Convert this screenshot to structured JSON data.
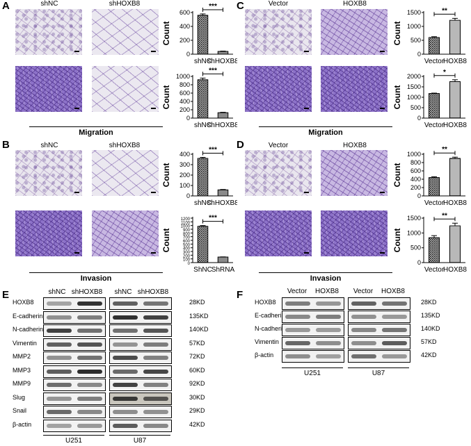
{
  "panels": {
    "A": {
      "letter": "A",
      "left": "shNC",
      "right": "shHOXB8",
      "caption": "Migration"
    },
    "B": {
      "letter": "B",
      "left": "shNC",
      "right": "shHOXB8",
      "caption": "Invasion"
    },
    "C": {
      "letter": "C",
      "left": "Vector",
      "right": "HOXB8",
      "caption": "Migration"
    },
    "D": {
      "letter": "D",
      "left": "Vector",
      "right": "HOXB8",
      "caption": "Invasion"
    }
  },
  "chart_data": [
    {
      "type": "bar",
      "panel": "A",
      "row": 1,
      "categories": [
        "shNC",
        "shHOXB8"
      ],
      "values": [
        560,
        40
      ],
      "errors": [
        20,
        5
      ],
      "ylabel": "Count",
      "ylim": [
        0,
        600
      ],
      "yticks": [
        0,
        200,
        400,
        600
      ],
      "significance": "***"
    },
    {
      "type": "bar",
      "panel": "A",
      "row": 2,
      "categories": [
        "shNC",
        "shHOXB8"
      ],
      "values": [
        920,
        130
      ],
      "errors": [
        40,
        10
      ],
      "ylabel": "Count",
      "ylim": [
        0,
        1000
      ],
      "yticks": [
        0,
        200,
        400,
        600,
        800,
        1000
      ],
      "significance": "***"
    },
    {
      "type": "bar",
      "panel": "B",
      "row": 1,
      "categories": [
        "shNC",
        "shHOXB8"
      ],
      "values": [
        360,
        58
      ],
      "errors": [
        10,
        4
      ],
      "ylabel": "Count",
      "ylim": [
        0,
        400
      ],
      "yticks": [
        0,
        100,
        200,
        300,
        400
      ],
      "significance": "***"
    },
    {
      "type": "bar",
      "panel": "B",
      "row": 2,
      "categories": [
        "ShNC",
        "ShRNA"
      ],
      "values": [
        980,
        150
      ],
      "errors": [
        20,
        5
      ],
      "ylabel": "Count",
      "ylim": [
        0,
        1200
      ],
      "yticks": [
        0,
        100,
        200,
        300,
        400,
        500,
        600,
        700,
        800,
        900,
        1000,
        1100,
        1200
      ],
      "significance": "***"
    },
    {
      "type": "bar",
      "panel": "C",
      "row": 1,
      "categories": [
        "Vector",
        "HOXB8"
      ],
      "values": [
        600,
        1220
      ],
      "errors": [
        30,
        70
      ],
      "ylabel": "Count",
      "ylim": [
        0,
        1500
      ],
      "yticks": [
        0,
        500,
        1000,
        1500
      ],
      "significance": "**"
    },
    {
      "type": "bar",
      "panel": "C",
      "row": 2,
      "categories": [
        "Vector",
        "HOXB8"
      ],
      "values": [
        1180,
        1750
      ],
      "errors": [
        20,
        90
      ],
      "ylabel": "Count",
      "ylim": [
        0,
        2000
      ],
      "yticks": [
        0,
        500,
        1000,
        1500,
        2000
      ],
      "significance": "*"
    },
    {
      "type": "bar",
      "panel": "D",
      "row": 1,
      "categories": [
        "Vector",
        "HOXB8"
      ],
      "values": [
        440,
        900
      ],
      "errors": [
        20,
        30
      ],
      "ylabel": "Count",
      "ylim": [
        0,
        1000
      ],
      "yticks": [
        0,
        200,
        400,
        600,
        800,
        1000
      ],
      "significance": "**"
    },
    {
      "type": "bar",
      "panel": "D",
      "row": 2,
      "categories": [
        "Vector",
        "HOXB8"
      ],
      "values": [
        840,
        1240
      ],
      "errors": [
        70,
        90
      ],
      "ylabel": "Count",
      "ylim": [
        0,
        1500
      ],
      "yticks": [
        0,
        500,
        1000,
        1500
      ],
      "significance": "**"
    }
  ],
  "blots": {
    "E": {
      "letter": "E",
      "proteins": [
        "HOXB8",
        "E-cadherin",
        "N-cadherin",
        "Vimentin",
        "MMP2",
        "MMP3",
        "MMP9",
        "Slug",
        "Snail",
        "β-actin"
      ],
      "sizes": [
        "28KD",
        "135KD",
        "140KD",
        "57KD",
        "72KD",
        "60KD",
        "92KD",
        "30KD",
        "29KD",
        "42KD"
      ],
      "lanes": [
        "shNC",
        "shHOXB8"
      ],
      "cells": [
        "U251",
        "U87"
      ]
    },
    "F": {
      "letter": "F",
      "proteins": [
        "HOXB8",
        "E-cadherin",
        "N-cadherin",
        "Vimentin",
        "β-actin"
      ],
      "sizes": [
        "28KD",
        "135KD",
        "140KD",
        "57KD",
        "42KD"
      ],
      "lanes": [
        "Vector",
        "HOXB8"
      ],
      "cells": [
        "U251",
        "U87"
      ]
    }
  }
}
